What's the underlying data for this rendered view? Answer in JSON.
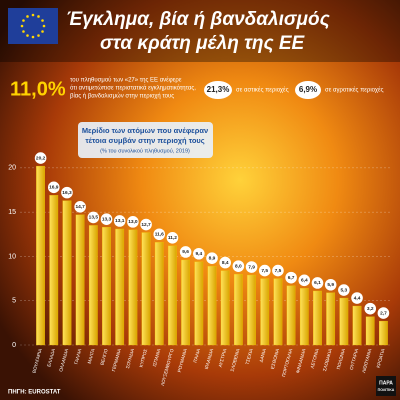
{
  "header": {
    "title_lines": [
      "Έγκλημα, βία ή βανδαλισμός",
      "στα κράτη μέλη της ΕΕ"
    ]
  },
  "stats": {
    "main_value": "11,0%",
    "main_text": [
      "του πληθυσμού των «27» της ΕΕ ανέφερε",
      "ότι αντιμετώπισε περιστατικά εγκληματικότητας,",
      "βίας ή βανδαλισμών στην περιοχή τους"
    ],
    "urban_value": "21,3%",
    "urban_text": "σε αστικές περιοχές",
    "rural_value": "6,9%",
    "rural_text": "σε αγροτικές περιοχές"
  },
  "chart_data": {
    "type": "bar",
    "title_lines": [
      "Μερίδιο των ατόμων που ανέφεραν",
      "τέτοια συμβάν στην περιοχή τους"
    ],
    "subtitle": "(% του συνολικού πληθυσμού, 2019)",
    "categories": [
      "ΒΟΥΛΓΑΡΙΑ",
      "ΕΛΛΑΔΑ",
      "ΟΛΛΑΝΔΙΑ",
      "ΓΑΛΛΙΑ",
      "ΜΑΛΤΑ",
      "ΒΕΛΓΙΟ",
      "ΓΕΡΜΑΝΙΑ",
      "ΣΟΥΗΔΙΑ",
      "ΚΥΠΡΟΣ",
      "ΙΣΠΑΝΙΑ",
      "ΛΟΥΞΕΜΒΟΥΡΓΟ",
      "ΡΟΥΜΑΝΙΑ",
      "ΙΤΑΛΙΑ",
      "ΙΡΛΑΝΔΙΑ",
      "ΑΥΣΤΡΙΑ",
      "ΣΛΟΒΕΝΙΑ",
      "ΤΣΕΧΙΑ",
      "ΔΑΝΙΑ",
      "ΕΣΘΟΝΙΑ",
      "ΠΟΡΤΟΓΑΛΙΑ",
      "ΦΙΝΛΑΝΔΙΑ",
      "ΛΕΤΟΝΙΑ",
      "ΣΛΟΒΑΚΙΑ",
      "ΠΟΛΩΝΙΑ",
      "ΟΥΓΓΑΡΙΑ",
      "ΛΙΘΟΥΑΝΙΑ",
      "ΚΡΟΑΤΙΑ"
    ],
    "values": [
      20.2,
      16.9,
      16.3,
      14.7,
      13.5,
      13.3,
      13.1,
      13.0,
      12.7,
      11.6,
      11.2,
      9.6,
      9.4,
      8.9,
      8.4,
      8.0,
      7.9,
      7.5,
      7.5,
      6.7,
      6.4,
      6.1,
      5.9,
      5.3,
      4.4,
      3.2,
      2.7
    ],
    "value_labels": [
      "20,2",
      "16,9",
      "16,3",
      "14,7",
      "13,5",
      "13,3",
      "13,1",
      "13,0",
      "12,7",
      "11,6",
      "11,2",
      "9,6",
      "9,4",
      "8,9",
      "8,4",
      "8,0",
      "7,9",
      "7,5",
      "7,5",
      "6,7",
      "6,4",
      "6,1",
      "5,9",
      "5,3",
      "4,4",
      "3,2",
      "2,7"
    ],
    "color": "#f5c400",
    "ylim": [
      0,
      21
    ],
    "yticks": [
      0,
      5,
      10,
      15,
      20
    ],
    "grid": true
  },
  "source": "ΠΗΓΗ: EUROSTAT",
  "logo": [
    "ΠΑΡΑ",
    "ΠΟΛΙΤΙΚΑ"
  ]
}
